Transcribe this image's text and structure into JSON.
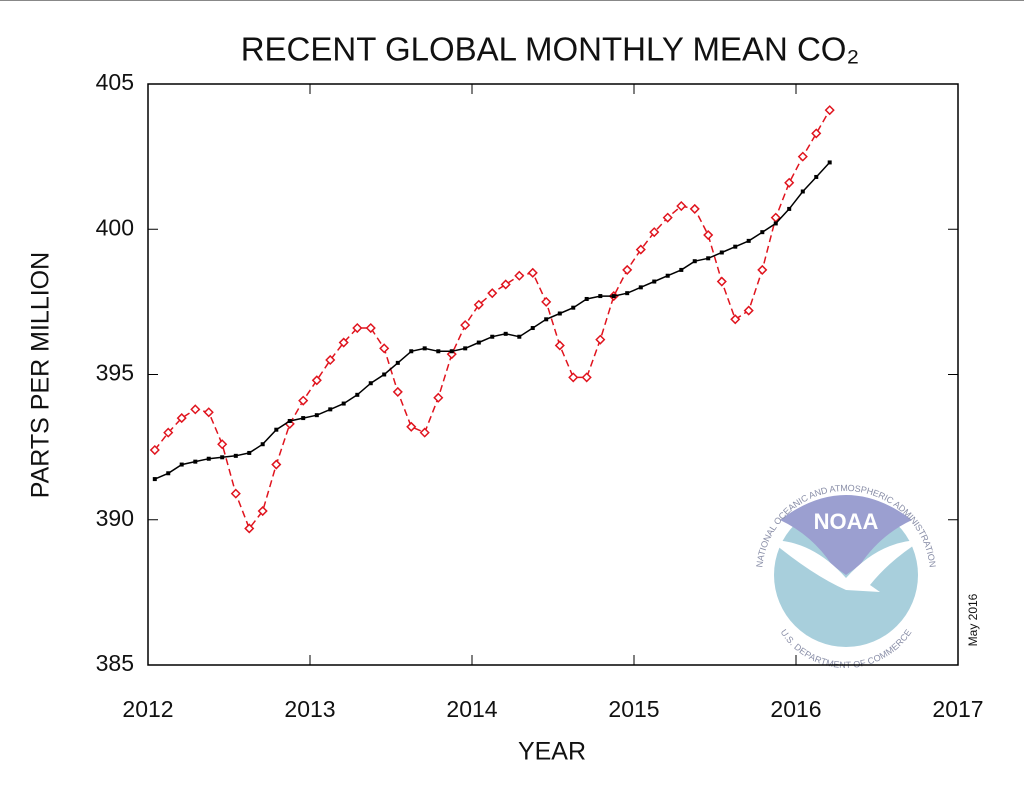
{
  "chart_data": {
    "type": "line",
    "title": "RECENT GLOBAL MONTHLY MEAN CO₂",
    "xlabel": "YEAR",
    "ylabel": "PARTS PER MILLION",
    "annotation": "May 2016",
    "logo": {
      "name": "NOAA",
      "top": "NATIONAL OCEANIC AND ATMOSPHERIC ADMINISTRATION",
      "bottom": "U.S. DEPARTMENT OF COMMERCE"
    },
    "xlim": [
      2012,
      2017
    ],
    "xticks": [
      2012,
      2013,
      2014,
      2015,
      2016,
      2017
    ],
    "ylim": [
      385,
      405
    ],
    "yticks": [
      385,
      390,
      395,
      400,
      405
    ],
    "x": [
      2012.042,
      2012.125,
      2012.208,
      2012.292,
      2012.375,
      2012.458,
      2012.542,
      2012.625,
      2012.708,
      2012.792,
      2012.875,
      2012.958,
      2013.042,
      2013.125,
      2013.208,
      2013.292,
      2013.375,
      2013.458,
      2013.542,
      2013.625,
      2013.708,
      2013.792,
      2013.875,
      2013.958,
      2014.042,
      2014.125,
      2014.208,
      2014.292,
      2014.375,
      2014.458,
      2014.542,
      2014.625,
      2014.708,
      2014.792,
      2014.875,
      2014.958,
      2015.042,
      2015.125,
      2015.208,
      2015.292,
      2015.375,
      2015.458,
      2015.542,
      2015.625,
      2015.708,
      2015.792,
      2015.875,
      2015.958,
      2016.042,
      2016.125,
      2016.208
    ],
    "series": [
      {
        "color": "#e0141e",
        "dashed": true,
        "marker": "diamond",
        "values": [
          392.4,
          393.0,
          393.5,
          393.8,
          393.7,
          392.6,
          390.9,
          389.7,
          390.3,
          391.9,
          393.3,
          394.1,
          394.8,
          395.5,
          396.1,
          396.6,
          396.6,
          395.9,
          394.4,
          393.2,
          393.0,
          394.2,
          395.7,
          396.7,
          397.4,
          397.8,
          398.1,
          398.4,
          398.5,
          397.5,
          396.0,
          394.9,
          394.9,
          396.2,
          397.7,
          398.6,
          399.3,
          399.9,
          400.4,
          400.8,
          400.7,
          399.8,
          398.2,
          396.9,
          397.2,
          398.6,
          400.4,
          401.6,
          402.5,
          403.3,
          404.1
        ]
      },
      {
        "color": "#000000",
        "dashed": false,
        "marker": "square",
        "values": [
          391.4,
          391.6,
          391.9,
          392.0,
          392.1,
          392.15,
          392.2,
          392.3,
          392.6,
          393.1,
          393.4,
          393.5,
          393.6,
          393.8,
          394.0,
          394.3,
          394.7,
          395.0,
          395.4,
          395.8,
          395.9,
          395.8,
          395.8,
          395.9,
          396.1,
          396.3,
          396.4,
          396.3,
          396.6,
          396.9,
          397.1,
          397.3,
          397.6,
          397.7,
          397.7,
          397.8,
          398.0,
          398.2,
          398.4,
          398.6,
          398.9,
          399.0,
          399.2,
          399.4,
          399.6,
          399.9,
          400.2,
          400.7,
          401.3,
          401.8,
          402.3
        ]
      }
    ]
  }
}
